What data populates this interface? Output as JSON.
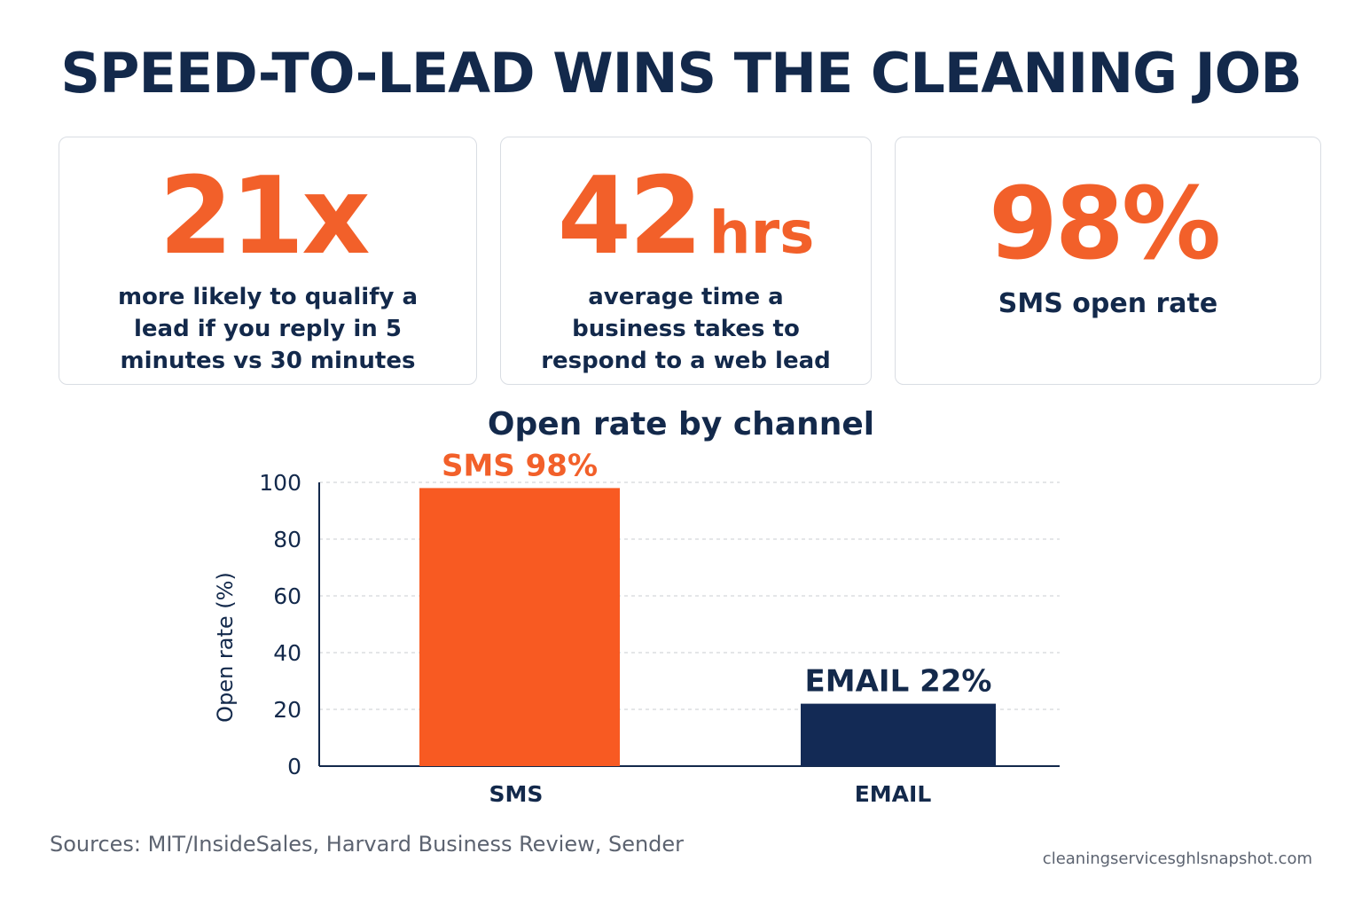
{
  "headline": "SPEED-TO-LEAD WINS THE CLEANING JOB",
  "stats": [
    {
      "value": "21x",
      "unit": "",
      "description": "more likely to qualify a lead if you reply in 5 minutes vs 30 minutes"
    },
    {
      "value": "42",
      "unit": "hrs",
      "description": "average time a business takes to respond to a web lead"
    },
    {
      "value": "98%",
      "unit": "",
      "description": "SMS open rate"
    }
  ],
  "colors": {
    "accent": "#f2602a",
    "navy": "#13294b",
    "bar_sms": "#f85a22",
    "bar_email": "#132a55"
  },
  "chart_data": {
    "type": "bar",
    "title": "Open rate by channel",
    "ylabel": "Open rate (%)",
    "xlabel": "",
    "categories": [
      "SMS",
      "EMAIL"
    ],
    "values": [
      98,
      22
    ],
    "data_labels": [
      "SMS 98%",
      "EMAIL 22%"
    ],
    "ylim": [
      0,
      100
    ],
    "yticks": [
      "0",
      "20",
      "40",
      "60",
      "80",
      "100"
    ],
    "grid": true
  },
  "footer": {
    "sources": "Sources: MIT/InsideSales, Harvard Business Review, Sender",
    "site": "cleaningservicesghlsnapshot.com"
  }
}
